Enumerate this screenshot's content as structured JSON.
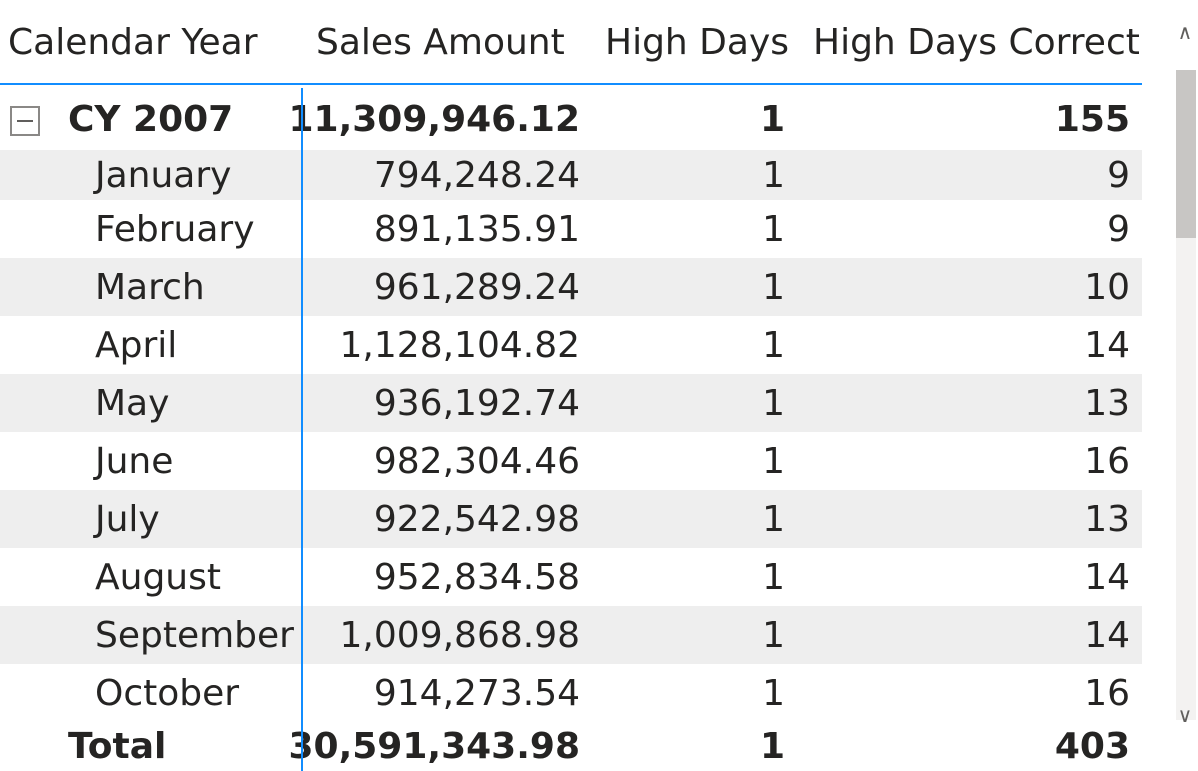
{
  "headers": [
    "Calendar Year",
    "Sales Amount",
    "High Days",
    "High Days Correct"
  ],
  "year_row": {
    "label": "CY 2007",
    "sales": "11,309,946.12",
    "high_days": "1",
    "high_days_correct": "155",
    "expand_state": "expanded"
  },
  "months": [
    {
      "label": "January",
      "sales": "794,248.24",
      "high_days": "1",
      "high_days_correct": "9"
    },
    {
      "label": "February",
      "sales": "891,135.91",
      "high_days": "1",
      "high_days_correct": "9"
    },
    {
      "label": "March",
      "sales": "961,289.24",
      "high_days": "1",
      "high_days_correct": "10"
    },
    {
      "label": "April",
      "sales": "1,128,104.82",
      "high_days": "1",
      "high_days_correct": "14"
    },
    {
      "label": "May",
      "sales": "936,192.74",
      "high_days": "1",
      "high_days_correct": "13"
    },
    {
      "label": "June",
      "sales": "982,304.46",
      "high_days": "1",
      "high_days_correct": "16"
    },
    {
      "label": "July",
      "sales": "922,542.98",
      "high_days": "1",
      "high_days_correct": "13"
    },
    {
      "label": "August",
      "sales": "952,834.58",
      "high_days": "1",
      "high_days_correct": "14"
    },
    {
      "label": "September",
      "sales": "1,009,868.98",
      "high_days": "1",
      "high_days_correct": "14"
    },
    {
      "label": "October",
      "sales": "914,273.54",
      "high_days": "1",
      "high_days_correct": "16"
    }
  ],
  "total_row": {
    "label": "Total",
    "sales": "30,591,343.98",
    "high_days": "1",
    "high_days_correct": "403"
  },
  "scrollbar": {
    "up": "∧",
    "down": "∨"
  },
  "colors": {
    "accent": "#118dff",
    "alt_row": "#eeeeee",
    "text": "#252423"
  }
}
